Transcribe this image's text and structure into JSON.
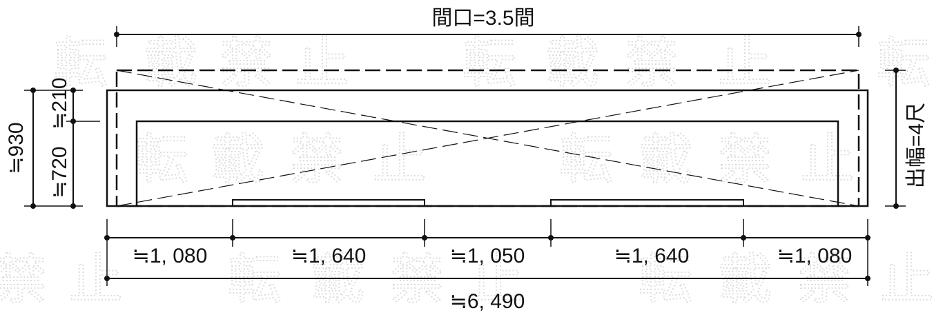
{
  "watermark": {
    "row_top": [
      "転",
      "載",
      "禁",
      "止",
      "転",
      "載",
      "禁",
      "止",
      "転"
    ],
    "row_mid": [
      "転",
      "載",
      "禁",
      "止",
      "転",
      "載",
      "禁",
      "止"
    ],
    "row_bottom": [
      "禁",
      "止",
      "転",
      "載",
      "禁",
      "止",
      "転",
      "載",
      "禁",
      "止"
    ]
  },
  "dimensions": {
    "frontage_label": "間口=3.5間",
    "depth_label": "出幅=4尺",
    "total_height_label": "≒930",
    "inner_height_label": "≒720",
    "top_offset_label": "≒210",
    "segments": [
      "≒1, 080",
      "≒1, 640",
      "≒1, 050",
      "≒1, 640",
      "≒1, 080"
    ],
    "total_width_label": "≒6, 490"
  },
  "colors": {
    "line": "#111111",
    "watermark": "#dcdcdc"
  }
}
